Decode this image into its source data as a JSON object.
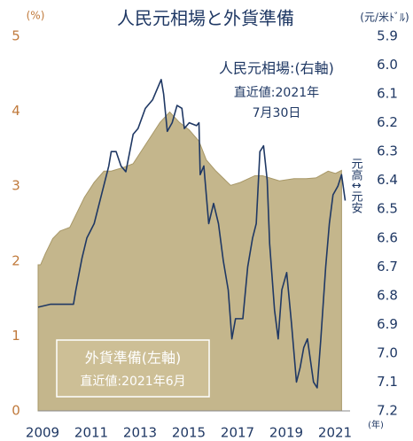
{
  "chart_data": {
    "type": "area_line",
    "title": "人民元相場と外貨準備",
    "y_unit_label": "(%)",
    "y2_unit_label": "(元/米ﾄﾞﾙ)",
    "x_unit_label": "(年)",
    "annotations": [
      "人民元相場:(右軸)",
      "直近値:2021年",
      "7月30日"
    ],
    "reserve_box": [
      "外貨準備(左軸)",
      "直近値:2021年6月"
    ],
    "y2_direction_label": "元高↕元安",
    "xlim": [
      2009,
      2021.8
    ],
    "xticks": [
      2009,
      2011,
      2013,
      2015,
      2017,
      2019,
      2021
    ],
    "ylim": [
      0,
      5
    ],
    "yticks": [
      0,
      1,
      2,
      3,
      4,
      5
    ],
    "y2lim": [
      5.9,
      7.2
    ],
    "y2_inverted": true,
    "y2ticks": [
      5.9,
      {
        "value": 6,
        "label": "6.0"
      },
      6.1,
      6.2,
      6.3,
      6.4,
      6.5,
      6.6,
      6.7,
      6.8,
      6.9,
      {
        "value": 7,
        "label": "7.0"
      },
      7.1,
      7.2
    ],
    "series": [
      {
        "name": "外貨準備",
        "kind": "area",
        "color": "#c4b68c",
        "x": [
          2009.0,
          2009.1,
          2009.3,
          2009.6,
          2009.9,
          2010.3,
          2010.6,
          2010.9,
          2011.3,
          2011.7,
          2012.0,
          2012.5,
          2012.9,
          2013.3,
          2013.7,
          2014.0,
          2014.4,
          2014.8,
          2015.2,
          2015.6,
          2015.9,
          2016.3,
          2016.9,
          2017.3,
          2017.9,
          2018.2,
          2018.9,
          2019.5,
          2020.0,
          2020.4,
          2020.9,
          2021.2,
          2021.45
        ],
        "values": [
          1.95,
          1.95,
          2.1,
          2.3,
          2.4,
          2.45,
          2.65,
          2.85,
          3.05,
          3.2,
          3.2,
          3.25,
          3.3,
          3.5,
          3.7,
          3.85,
          3.99,
          3.85,
          3.75,
          3.6,
          3.35,
          3.2,
          3.01,
          3.05,
          3.14,
          3.14,
          3.07,
          3.1,
          3.1,
          3.11,
          3.2,
          3.17,
          3.21
        ]
      },
      {
        "name": "人民元相場",
        "kind": "line",
        "axis": "y2",
        "color": "#1f3864",
        "x": [
          2009.0,
          2009.5,
          2010.0,
          2010.45,
          2010.55,
          2010.8,
          2011.0,
          2011.3,
          2011.6,
          2011.9,
          2012.0,
          2012.2,
          2012.4,
          2012.6,
          2012.9,
          2013.1,
          2013.4,
          2013.7,
          2013.9,
          2014.05,
          2014.15,
          2014.3,
          2014.5,
          2014.7,
          2014.9,
          2015.0,
          2015.2,
          2015.5,
          2015.6,
          2015.65,
          2015.8,
          2016.0,
          2016.2,
          2016.4,
          2016.6,
          2016.8,
          2016.95,
          2017.1,
          2017.4,
          2017.6,
          2017.8,
          2017.95,
          2018.1,
          2018.25,
          2018.4,
          2018.5,
          2018.7,
          2018.85,
          2019.0,
          2019.2,
          2019.4,
          2019.6,
          2019.75,
          2019.9,
          2020.05,
          2020.3,
          2020.45,
          2020.6,
          2020.8,
          2020.95,
          2021.1,
          2021.3,
          2021.45,
          2021.6
        ],
        "values": [
          6.84,
          6.83,
          6.83,
          6.83,
          6.78,
          6.67,
          6.6,
          6.55,
          6.45,
          6.35,
          6.3,
          6.3,
          6.35,
          6.37,
          6.24,
          6.22,
          6.15,
          6.12,
          6.08,
          6.05,
          6.1,
          6.23,
          6.2,
          6.14,
          6.15,
          6.22,
          6.2,
          6.21,
          6.2,
          6.38,
          6.35,
          6.55,
          6.48,
          6.55,
          6.68,
          6.78,
          6.95,
          6.88,
          6.88,
          6.7,
          6.6,
          6.55,
          6.3,
          6.28,
          6.4,
          6.62,
          6.85,
          6.95,
          6.78,
          6.72,
          6.9,
          7.1,
          7.05,
          6.98,
          6.95,
          7.1,
          7.12,
          6.95,
          6.7,
          6.55,
          6.45,
          6.42,
          6.38,
          6.47
        ]
      }
    ]
  }
}
